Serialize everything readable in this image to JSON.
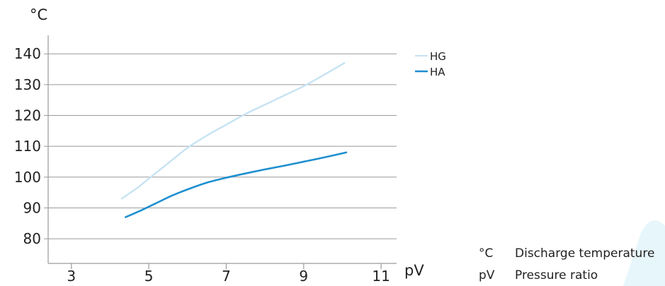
{
  "chart_data": {
    "type": "line",
    "ylabel": "°C",
    "xlabel": "pV",
    "xlim": [
      2.4,
      11.4
    ],
    "ylim": [
      72,
      146
    ],
    "xticks": [
      3,
      5,
      7,
      9,
      11
    ],
    "yticks": [
      80,
      90,
      100,
      110,
      120,
      130,
      140
    ],
    "grid": "horizontal",
    "legend_position": "top-right",
    "series": [
      {
        "name": "HG",
        "color": "#c6e3f3",
        "x": [
          4.3,
          4.7,
          5.0,
          5.5,
          6.0,
          6.5,
          7.0,
          7.5,
          8.0,
          8.5,
          9.0,
          9.5,
          10.05
        ],
        "y": [
          93,
          96.5,
          99.5,
          104.5,
          109.5,
          113.5,
          117,
          120.5,
          123.5,
          126.5,
          129.5,
          133,
          137
        ]
      },
      {
        "name": "HA",
        "color": "#1e8fd0",
        "x": [
          4.4,
          4.8,
          5.2,
          5.6,
          6.0,
          6.5,
          7.0,
          7.5,
          8.0,
          8.5,
          9.0,
          9.5,
          10.1
        ],
        "y": [
          87,
          89.2,
          91.6,
          94,
          96,
          98.2,
          99.8,
          101.2,
          102.5,
          103.7,
          105,
          106.3,
          108
        ]
      }
    ],
    "notes": [
      {
        "abbr": "°C",
        "text": "Discharge temperature"
      },
      {
        "abbr": "pV",
        "text": "Pressure ratio"
      }
    ]
  }
}
